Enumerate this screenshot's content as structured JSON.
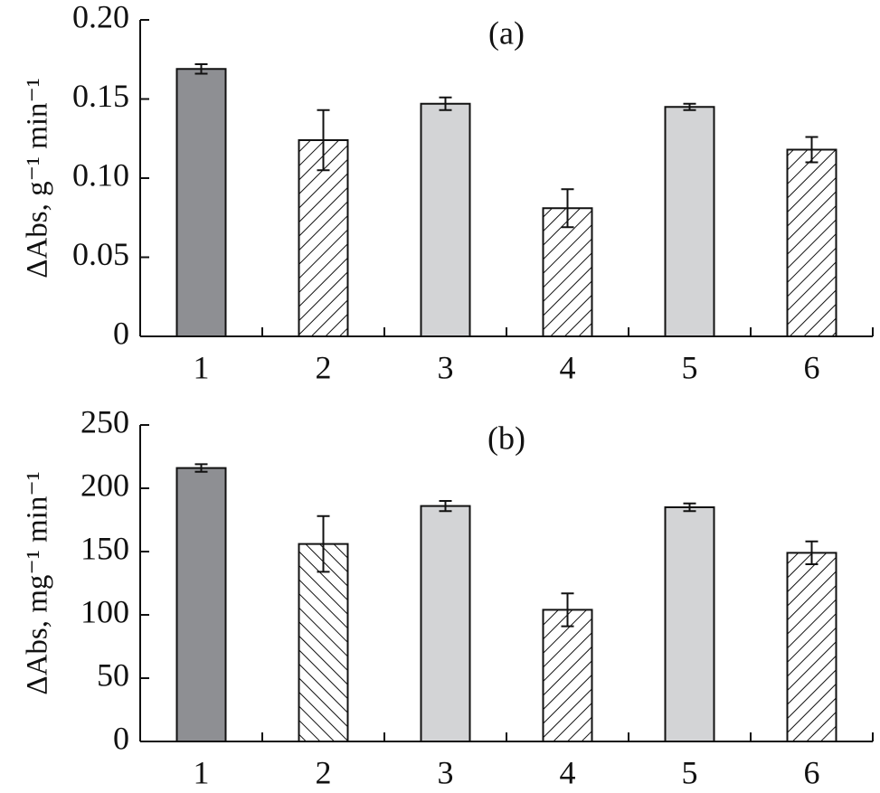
{
  "chart_data": [
    {
      "type": "bar",
      "title": "(a)",
      "y_label": "ΔAbs, g⁻¹ min⁻¹",
      "categories": [
        "1",
        "2",
        "3",
        "4",
        "5",
        "6"
      ],
      "values": [
        0.169,
        0.124,
        0.147,
        0.081,
        0.145,
        0.118
      ],
      "errors": [
        0.003,
        0.019,
        0.004,
        0.012,
        0.002,
        0.008
      ],
      "bar_colors": [
        "#8e8f93",
        "#ffffff",
        "#d3d4d6",
        "#ffffff",
        "#d3d4d6",
        "#ffffff"
      ],
      "hatch": [
        null,
        "/",
        null,
        "/",
        null,
        "/"
      ],
      "ylim": [
        0,
        0.2
      ],
      "yticks": [
        0,
        0.05,
        {
          "value": 0.1,
          "label": "0.10"
        },
        0.15,
        {
          "value": 0.2,
          "label": "0.20"
        }
      ]
    },
    {
      "type": "bar",
      "title": "(b)",
      "y_label": "ΔAbs, mg⁻¹ min⁻¹",
      "categories": [
        "1",
        "2",
        "3",
        "4",
        "5",
        "6"
      ],
      "values": [
        216,
        156,
        186,
        104,
        185,
        149
      ],
      "errors": [
        3,
        22,
        4,
        13,
        3,
        9
      ],
      "bar_colors": [
        "#8e8f93",
        "#ffffff",
        "#d3d4d6",
        "#ffffff",
        "#d3d4d6",
        "#ffffff"
      ],
      "hatch": [
        null,
        "\\",
        null,
        "/",
        null,
        "/"
      ],
      "ylim": [
        0,
        250
      ],
      "yticks": [
        0,
        50,
        100,
        150,
        200,
        250
      ]
    }
  ]
}
